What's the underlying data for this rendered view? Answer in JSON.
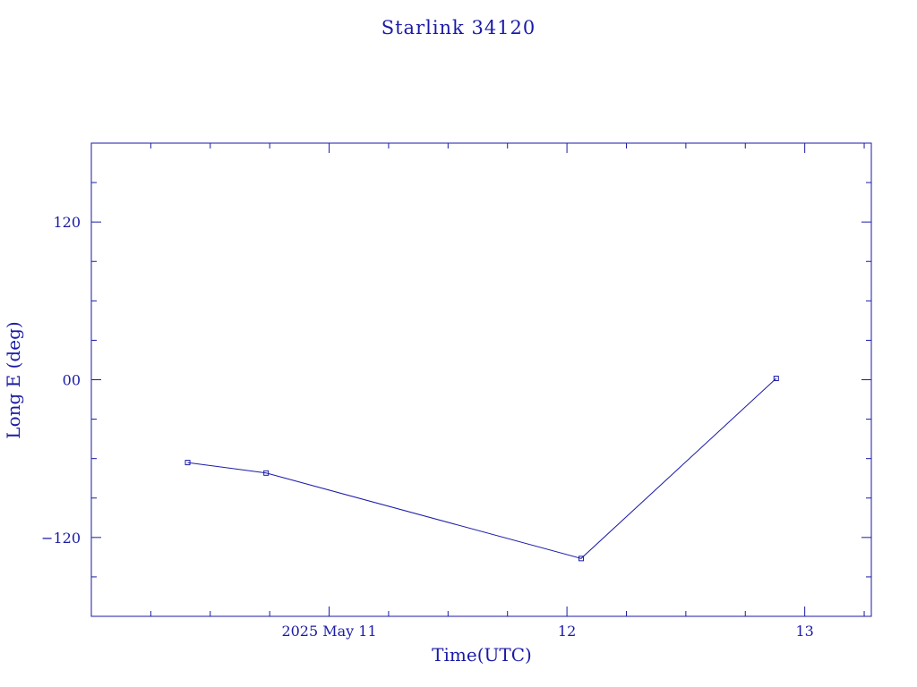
{
  "chart_data": {
    "type": "line",
    "title": "Starlink 34120",
    "xlabel": "Time(UTC)",
    "ylabel": "Long E (deg)",
    "x_tick_labels": [
      {
        "label": "2025 May 11",
        "value": 0
      },
      {
        "label": "12",
        "value": 1
      },
      {
        "label": "13",
        "value": 2
      }
    ],
    "y_tick_labels": [
      {
        "label": "120",
        "value": 120
      },
      {
        "label": "00",
        "value": 0
      },
      {
        "label": "−120",
        "value": -120
      }
    ],
    "xlim": [
      -1.0,
      2.28
    ],
    "ylim": [
      -180,
      180
    ],
    "x_minor_step": 0.25,
    "y_minor_step": 30,
    "grid": false,
    "series": [
      {
        "x": [
          -0.595,
          -0.265,
          1.06,
          1.88
        ],
        "y": [
          -63,
          -71,
          -136,
          1
        ]
      }
    ]
  }
}
